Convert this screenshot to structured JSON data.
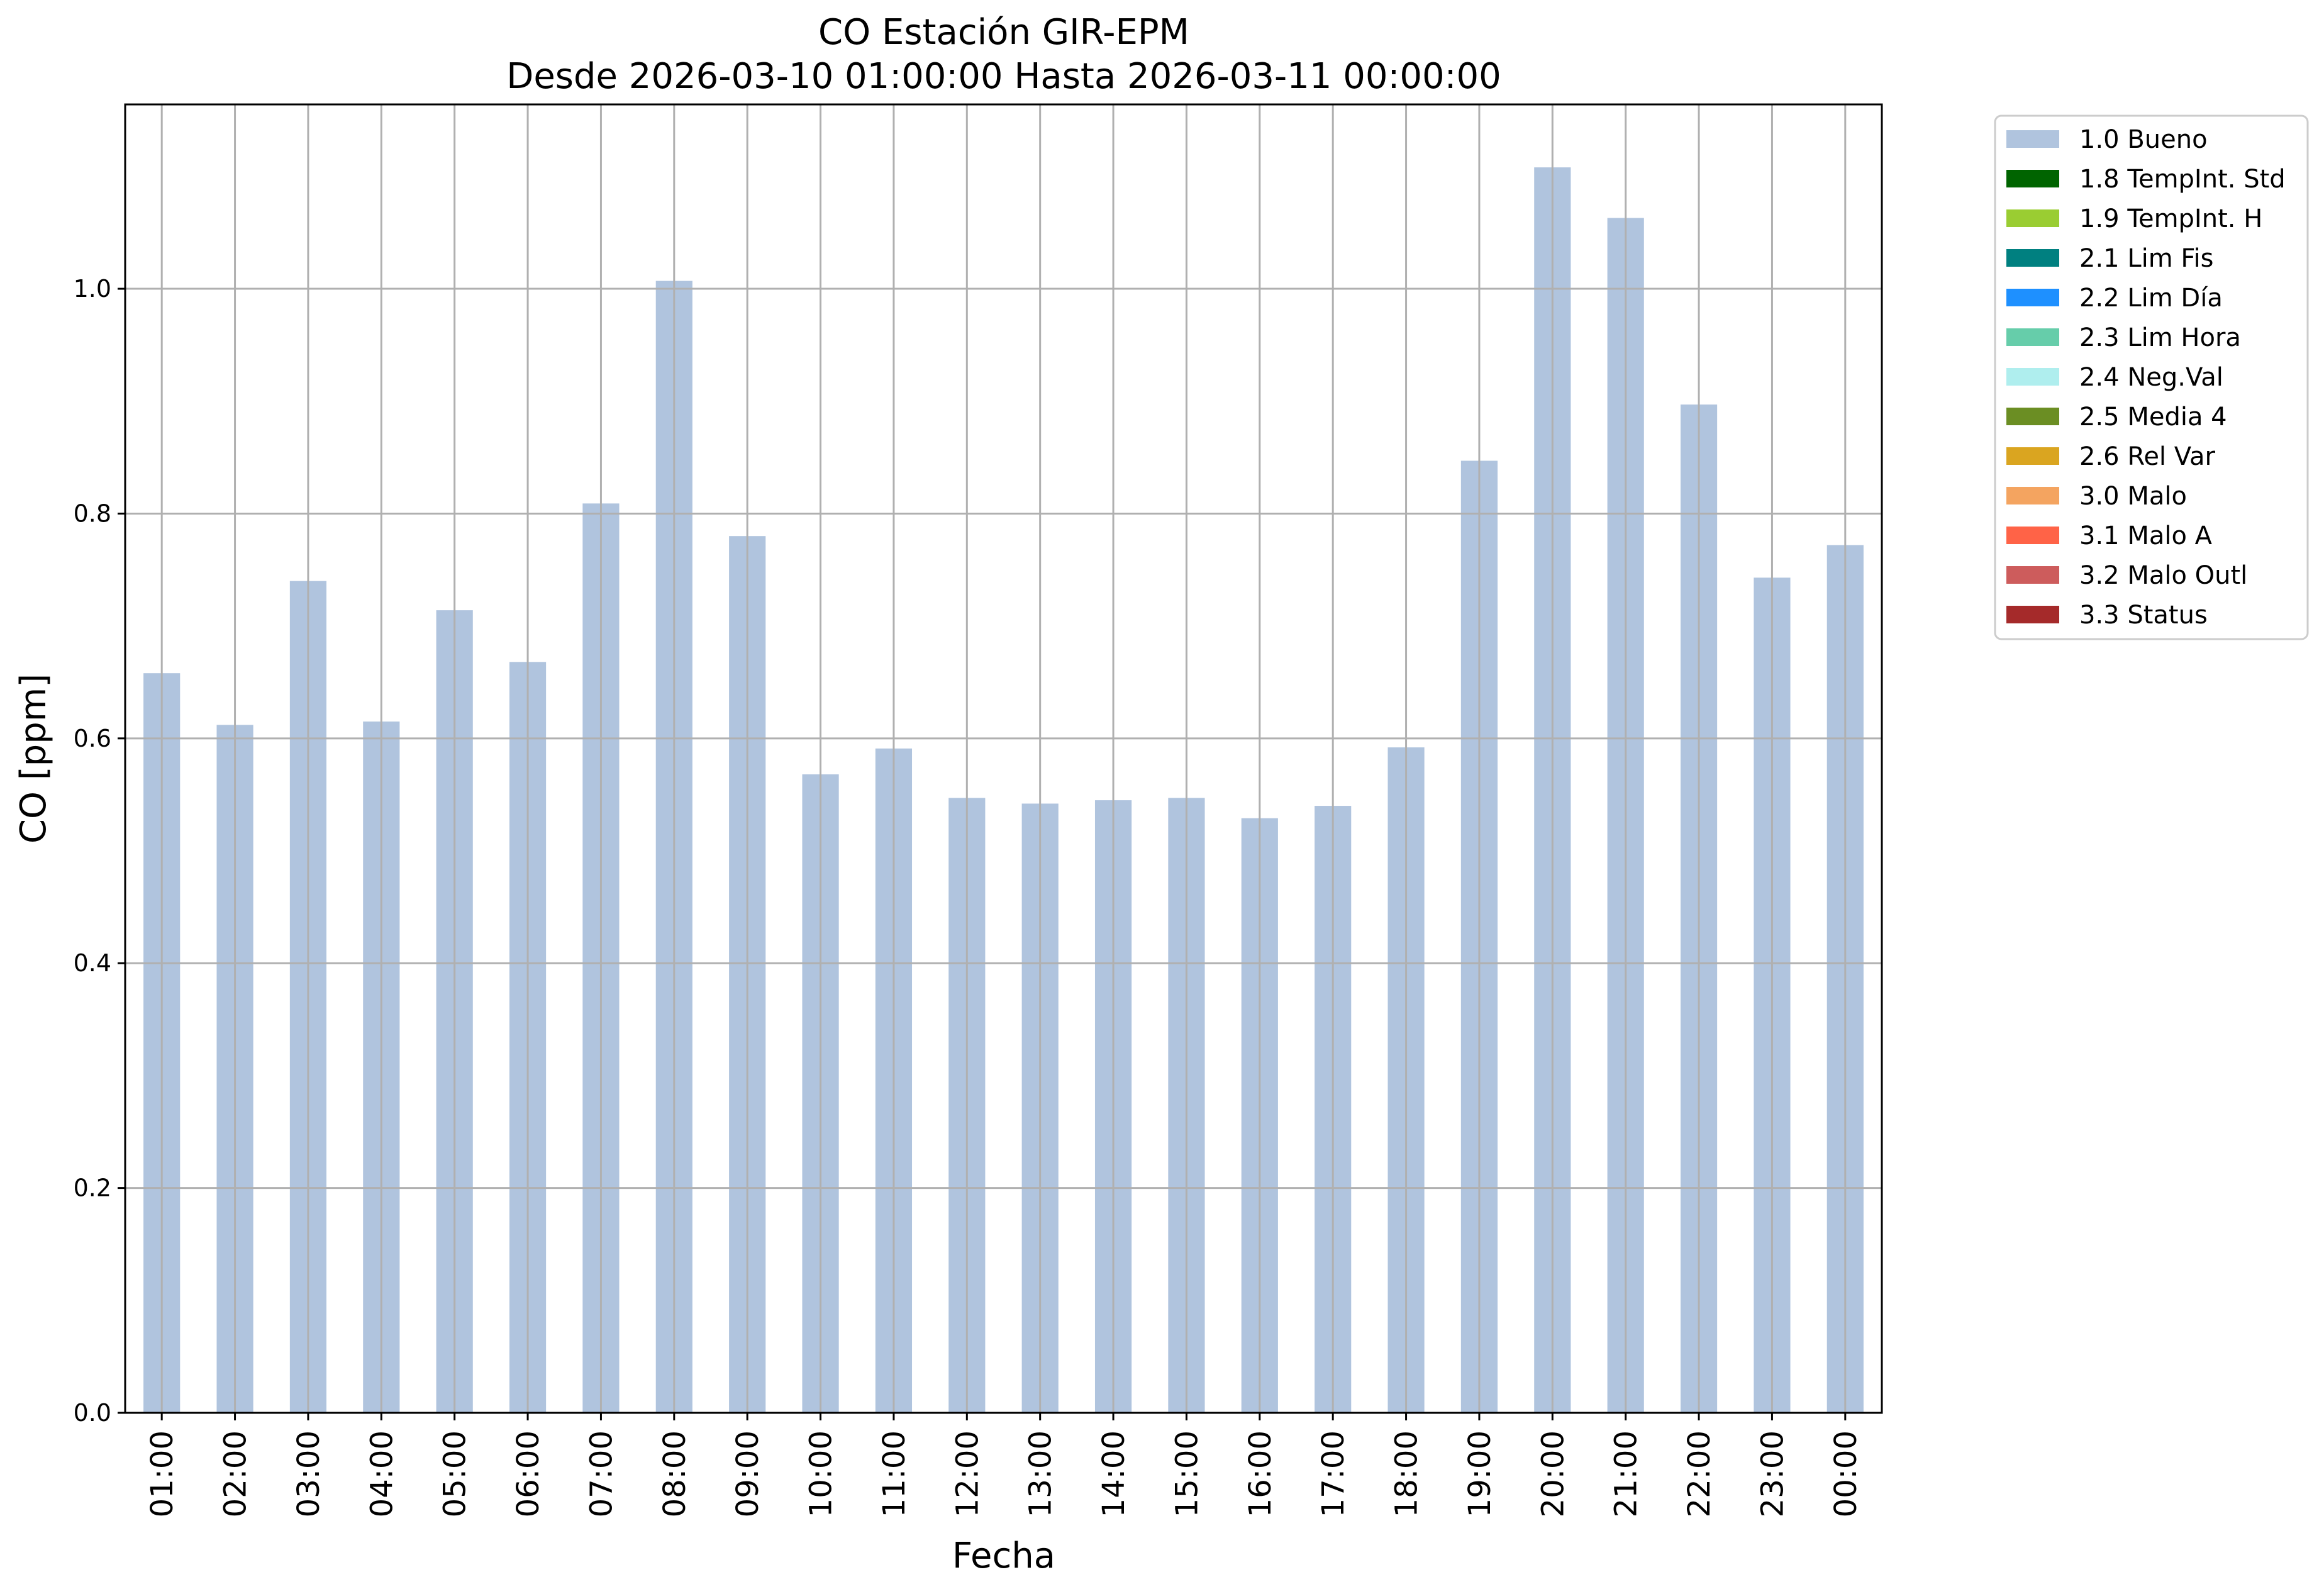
{
  "chart_data": {
    "type": "bar",
    "title": "CO Estación GIR-EPM",
    "subtitle": "Desde 2026-03-10 01:00:00 Hasta 2026-03-11 00:00:00",
    "xlabel": "Fecha",
    "ylabel": "CO [ppm]",
    "ylim": [
      0,
      1.164
    ],
    "yticks": [
      "0.0",
      "0.2",
      "0.4",
      "0.6",
      "0.8",
      "1.0"
    ],
    "grid": true,
    "legend_position": "outside top-right",
    "categories": [
      "01:00",
      "02:00",
      "03:00",
      "04:00",
      "05:00",
      "06:00",
      "07:00",
      "08:00",
      "09:00",
      "10:00",
      "11:00",
      "12:00",
      "13:00",
      "14:00",
      "15:00",
      "16:00",
      "17:00",
      "18:00",
      "19:00",
      "20:00",
      "21:00",
      "22:00",
      "23:00",
      "00:00"
    ],
    "series": [
      {
        "name": "1.0 Bueno",
        "color": "#b0c4de",
        "values": [
          0.658,
          0.612,
          0.74,
          0.615,
          0.714,
          0.668,
          0.809,
          1.007,
          0.78,
          0.568,
          0.591,
          0.547,
          0.542,
          0.545,
          0.547,
          0.529,
          0.54,
          0.592,
          0.847,
          1.108,
          1.063,
          0.897,
          0.743,
          0.772
        ]
      }
    ],
    "legend": [
      {
        "label": "1.0 Bueno",
        "color": "#b0c4de"
      },
      {
        "label": "1.8 TempInt. Std",
        "color": "#006400"
      },
      {
        "label": "1.9 TempInt. H",
        "color": "#9acd32"
      },
      {
        "label": "2.1 Lim Fis",
        "color": "#008080"
      },
      {
        "label": "2.2 Lim Día",
        "color": "#1e90ff"
      },
      {
        "label": "2.3 Lim Hora",
        "color": "#66cdaa"
      },
      {
        "label": "2.4 Neg.Val",
        "color": "#afeeee"
      },
      {
        "label": "2.5 Media 4",
        "color": "#6b8e23"
      },
      {
        "label": "2.6 Rel Var",
        "color": "#daa520"
      },
      {
        "label": "3.0 Malo",
        "color": "#f4a460"
      },
      {
        "label": "3.1 Malo A",
        "color": "#ff6347"
      },
      {
        "label": "3.2 Malo Outl",
        "color": "#cd5c5c"
      },
      {
        "label": "3.3 Status",
        "color": "#a52a2a"
      }
    ]
  }
}
